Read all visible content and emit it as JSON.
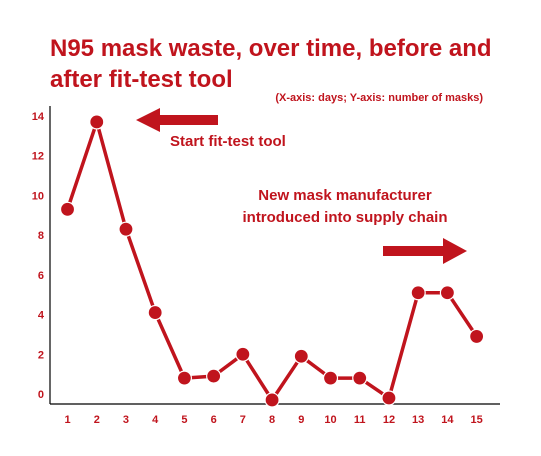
{
  "colors": {
    "accent": "#c0141d",
    "axis": "#000000",
    "background": "#ffffff"
  },
  "chart_data": {
    "type": "line",
    "title_lines": [
      "N95 mask waste, over time, before and",
      "after fit-test tool"
    ],
    "subtitle": "(X-axis: days; Y-axis: number of masks)",
    "xlabel": "",
    "ylabel": "",
    "x": [
      1,
      2,
      3,
      4,
      5,
      6,
      7,
      8,
      9,
      10,
      11,
      12,
      13,
      14,
      15
    ],
    "y": [
      9.3,
      13.7,
      8.3,
      4.1,
      0.8,
      0.9,
      2.0,
      -0.3,
      1.9,
      0.8,
      0.8,
      -0.2,
      5.1,
      5.1,
      2.9
    ],
    "xlim": [
      0.4,
      15.8
    ],
    "ylim": [
      0,
      14
    ],
    "yticks": [
      0,
      2,
      4,
      6,
      8,
      10,
      12,
      14
    ],
    "xticks": [
      1,
      2,
      3,
      4,
      5,
      6,
      7,
      8,
      9,
      10,
      11,
      12,
      13,
      14,
      15
    ],
    "grid": false,
    "legend": "none",
    "annotations": [
      {
        "lines": [
          "Start fit-test tool"
        ],
        "arrow": "left"
      },
      {
        "lines": [
          "New mask manufacturer",
          "introduced into supply chain"
        ],
        "arrow": "right"
      }
    ]
  }
}
